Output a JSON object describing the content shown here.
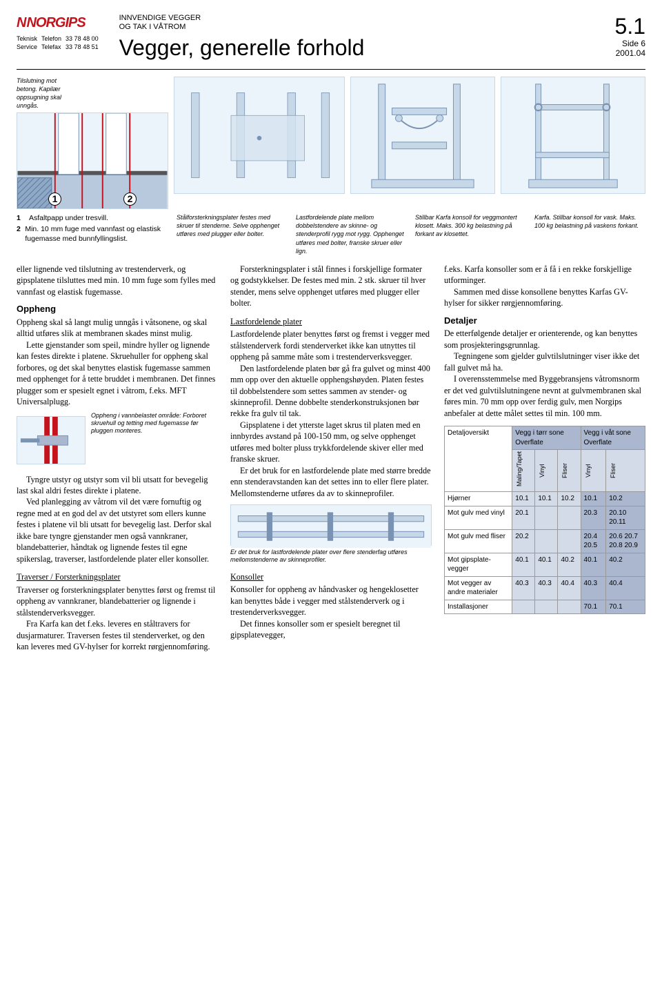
{
  "header": {
    "logo_text": "NORGIPS",
    "contact": {
      "l1a": "Teknisk",
      "l1b": "Telefon",
      "l1c": "33 78 48 00",
      "l2a": "Service",
      "l2b": "Telefax",
      "l2c": "33 78 48 51"
    },
    "supertitle_l1": "INNVENDIGE VEGGER",
    "supertitle_l2": "OG TAK I VÅTROM",
    "title": "Vegger, generelle forhold",
    "section": "5.1",
    "side": "Side 6",
    "date": "2001.04"
  },
  "fig1": {
    "caption": "Tilslutning mot betong. Kapilær oppsugning skal unngås.",
    "n1": "1",
    "n2": "2"
  },
  "legend": {
    "l1n": "1",
    "l1t": "Asfaltpapp under tresvill.",
    "l2n": "2",
    "l2t": "Min. 10 mm fuge med vannfast og elastisk fugemasse med bunnfyllingslist."
  },
  "figcaps": {
    "c2": "Stålforsterkningsplater festes med skruer til stenderne. Selve opphenget utføres med plugger eller bolter.",
    "c3": "Lastfordelende plate mellom dobbelstendere av skinne- og stenderprofil rygg mot rygg. Opphenget utføres med bolter, franske skruer eller lign.",
    "c4": "Stillbar Karfa konsoll for veggmontert klosett. Maks. 300 kg belastning på forkant av klosettet.",
    "c5": "Karfa. Stillbar konsoll for vask. Maks. 100 kg belastning på vaskens forkant."
  },
  "col1": {
    "lead": "eller lignende ved tilslutning av trestenderverk, og gipsplatene tilsluttes med min. 10 mm fuge som fylles med vannfast og elastisk fugemasse.",
    "h_oppheng": "Oppheng",
    "p1": "Oppheng skal så langt mulig unngås i våtsonene, og skal alltid utføres slik at membranen skades minst mulig.",
    "p2": "Lette gjenstander som speil, mindre hyller og lignende kan festes direkte i platene. Skruehuller for oppheng skal forbores, og det skal benyttes elastisk fugemasse sammen med opphenget for å tette bruddet i membranen. Det finnes plugger som er spesielt egnet i våtrom, f.eks. MFT Universalplugg.",
    "minicap": "Oppheng i vannbelastet område: Forboret skruehull og tetting med fugemasse før pluggen monteres.",
    "p3": "Tyngre utstyr og utstyr som vil bli utsatt for bevegelig last skal aldri festes direkte i platene.",
    "p4": "Ved planlegging av våtrom vil det være fornuftig og regne med at en god del av det utstyret som ellers kunne festes i platene vil bli utsatt for bevegelig last. Derfor skal ikke bare tyngre gjenstander men også vannkraner, blandebatterier, håndtak og lignende festes til egne spikerslag, traverser, lastfordelende plater eller konsoller.",
    "h_trav": "Traverser / Forsterkningsplater",
    "p5": "Traverser og forsterkningsplater benyttes først og fremst til oppheng av vannkraner, blandebatterier og lignende i stålstenderverksvegger.",
    "p6": "Fra Karfa kan det f.eks. leveres en ståltravers for dusjarmaturer. Traversen festes til stenderverket, og den kan leveres med GV-hylser for korrekt rørgjennomføring."
  },
  "col2": {
    "p1": "Forsterkningsplater i stål finnes i forskjellige formater og godstykkelser. De festes med min. 2 stk. skruer til hver stender, mens selve opphenget utføres med plugger eller bolter.",
    "h_last": "Lastfordelende plater",
    "p2": "Lastfordelende plater benyttes først og fremst i vegger med stålstenderverk fordi stenderverket ikke kan utnyttes til oppheng på samme måte som i trestenderverksvegger.",
    "p3": "Den lastfordelende platen bør gå fra gulvet og minst 400 mm opp over den aktuelle opphengshøyden. Platen festes til dobbelstendere som settes sammen av stender- og skinneprofil. Denne dobbelte stenderkonstruksjonen bør rekke fra gulv til tak.",
    "p4": "Gipsplatene i det ytterste laget skrus til platen med en innbyrdes avstand på 100-150 mm, og selve opphenget utføres med bolter pluss trykkfordelende skiver eller med franske skruer.",
    "p5": "Er det bruk for en lastfordelende plate med større bredde enn stenderavstanden kan det settes inn to eller flere plater. Mellomstenderne utføres da av to skinneprofiler.",
    "minicap": "Er det bruk for lastfordelende plater over flere stenderfag utføres mellomstenderne av skinneprofiler.",
    "h_kons": "Konsoller",
    "p6": "Konsoller for oppheng av håndvasker og hengeklosetter kan benyttes både i vegger med stålstenderverk og i trestenderverksvegger.",
    "p7": "Det finnes konsoller som er spesielt beregnet til gipsplatevegger,"
  },
  "col3": {
    "p1": "f.eks. Karfa konsoller som er å få i en rekke forskjellige utforminger.",
    "p2": "Sammen med disse konsollene benyttes Karfas GV-hylser for sikker rørgjennomføring.",
    "h_det": "Detaljer",
    "p3": "De etterfølgende detaljer er orienterende, og kan benyttes som prosjekteringsgrunnlag.",
    "p4": "Tegningene som gjelder gulvtilslutninger viser ikke det fall gulvet må ha.",
    "p5": "I overensstemmelse med Byggebransjens våtromsnorm er det ved gulvtilslutningene nevnt at gulvmembranen skal føres min. 70 mm opp over ferdig gulv, men Norgips anbefaler at dette målet settes til min. 100 mm."
  },
  "table": {
    "title": "Detaljoversikt",
    "grp1": "Vegg i tørr sone Overflate",
    "grp2": "Vegg i våt sone Overflate",
    "cols": [
      "Maling/Tapet",
      "Vinyl",
      "Fliser",
      "Vinyl",
      "Fliser"
    ],
    "rows": [
      {
        "label": "Hjørner",
        "v": [
          "10.1",
          "10.1",
          "10.2",
          "10.1",
          "10.2"
        ]
      },
      {
        "label": "Mot gulv med vinyl",
        "v": [
          "20.1",
          "",
          "",
          "20.3",
          "20.10 20.11"
        ]
      },
      {
        "label": "Mot gulv med fliser",
        "v": [
          "20.2",
          "",
          "",
          "20.4 20.5",
          "20.6 20.7 20.8 20.9"
        ]
      },
      {
        "label": "Mot gipsplate- vegger",
        "v": [
          "40.1",
          "40.1",
          "40.2",
          "40.1",
          "40.2"
        ]
      },
      {
        "label": "Mot vegger av andre materialer",
        "v": [
          "40.3",
          "40.3",
          "40.4",
          "40.3",
          "40.4"
        ]
      },
      {
        "label": "Installasjoner",
        "v": [
          "",
          "",
          "",
          "70.1",
          "70.1"
        ]
      }
    ]
  },
  "colors": {
    "brand_red": "#c4131c",
    "fig_bg": "#ecf4fb",
    "th_blue": "#aab7ce",
    "th_light": "#d4dbe8"
  }
}
